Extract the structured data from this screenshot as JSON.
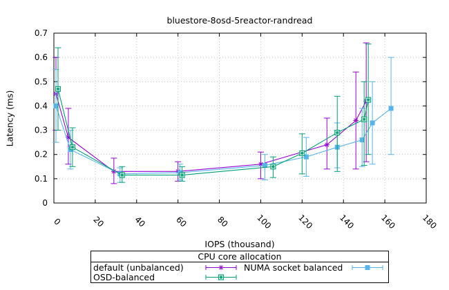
{
  "chart_data": {
    "type": "line",
    "title": "bluestore-8osd-5reactor-randread",
    "xlabel": "IOPS (thousand)",
    "ylabel": "Latency (ms)",
    "xlim": [
      0,
      180
    ],
    "ylim": [
      0,
      0.7
    ],
    "x_ticks": [
      0,
      20,
      40,
      60,
      80,
      100,
      120,
      140,
      160,
      180
    ],
    "y_ticks": [
      0,
      0.1,
      0.2,
      0.3,
      0.4,
      0.5,
      0.6,
      0.7
    ],
    "grid": "dotted",
    "grid_color": "#c4c4c4",
    "error_bars": true,
    "point_format": [
      "x",
      "y",
      "y_low",
      "y_high"
    ],
    "legend": {
      "title": "CPU core allocation",
      "position": "below-chart",
      "entries": [
        "default (unbalanced)",
        "NUMA socket balanced",
        "OSD-balanced"
      ]
    },
    "series": [
      {
        "name": "default (unbalanced)",
        "color": "#9400d3",
        "marker": "asterisk",
        "points": [
          [
            1,
            0.45,
            0.3,
            0.6
          ],
          [
            7,
            0.27,
            0.16,
            0.39
          ],
          [
            29,
            0.13,
            0.08,
            0.185
          ],
          [
            60,
            0.13,
            0.09,
            0.17
          ],
          [
            100,
            0.16,
            0.1,
            0.21
          ],
          [
            132,
            0.24,
            0.14,
            0.35
          ],
          [
            146,
            0.34,
            0.14,
            0.54
          ],
          [
            151,
            0.42,
            0.17,
            0.66
          ]
        ]
      },
      {
        "name": "NUMA socket balanced",
        "color": "#56b4e9",
        "marker": "filled-square",
        "points": [
          [
            1,
            0.4,
            0.25,
            0.55
          ],
          [
            8,
            0.22,
            0.14,
            0.3
          ],
          [
            32,
            0.12,
            0.085,
            0.145
          ],
          [
            61,
            0.125,
            0.095,
            0.16
          ],
          [
            102,
            0.155,
            0.095,
            0.2
          ],
          [
            122,
            0.19,
            0.11,
            0.27
          ],
          [
            137,
            0.23,
            0.145,
            0.33
          ],
          [
            149,
            0.26,
            0.15,
            0.39
          ],
          [
            154,
            0.33,
            0.16,
            0.5
          ],
          [
            163,
            0.39,
            0.2,
            0.6
          ]
        ]
      },
      {
        "name": "OSD-balanced",
        "color": "#009e73",
        "marker": "open-square-asterisk",
        "points": [
          [
            2,
            0.47,
            0.3,
            0.64
          ],
          [
            9,
            0.23,
            0.15,
            0.31
          ],
          [
            33,
            0.115,
            0.085,
            0.15
          ],
          [
            62,
            0.115,
            0.09,
            0.15
          ],
          [
            106,
            0.15,
            0.105,
            0.19
          ],
          [
            120,
            0.205,
            0.12,
            0.285
          ],
          [
            137,
            0.29,
            0.13,
            0.44
          ],
          [
            150,
            0.345,
            0.155,
            0.5
          ],
          [
            152,
            0.425,
            0.2,
            0.655
          ]
        ]
      }
    ]
  }
}
